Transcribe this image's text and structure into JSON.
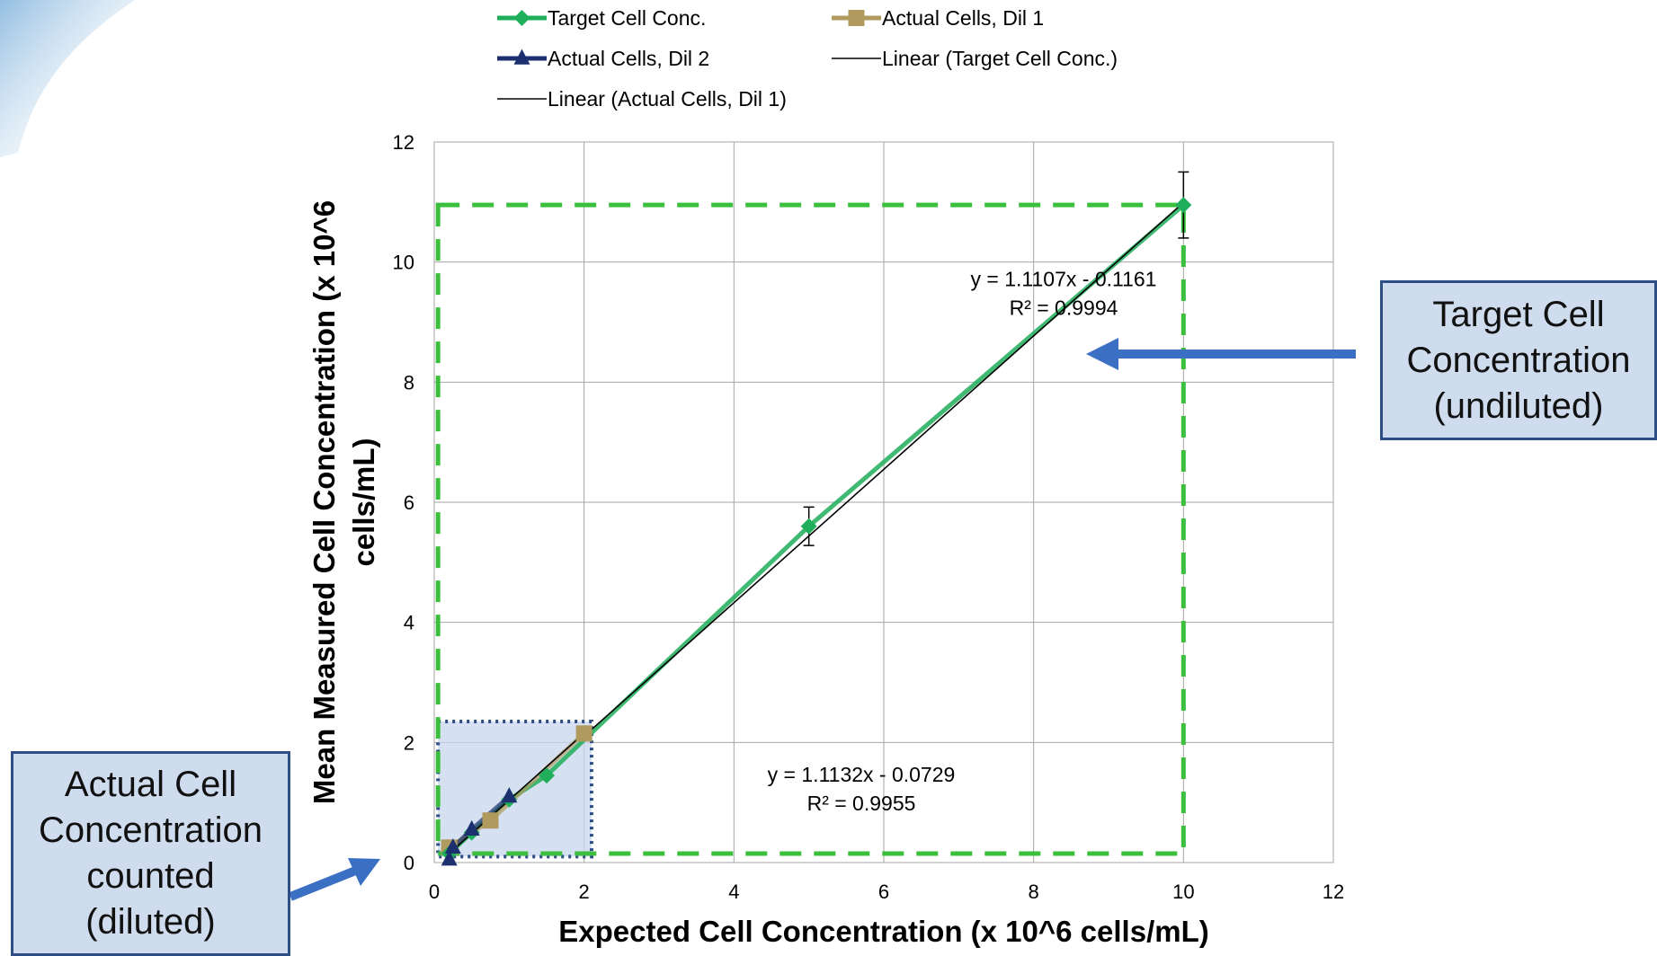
{
  "chart_data": {
    "type": "scatter",
    "title": "",
    "xlabel": "Expected Cell Concentration (x 10^6 cells/mL)",
    "ylabel_lines": [
      "Mean Measured Cell Concentration (x 10^6",
      "cells/mL)"
    ],
    "xlim": [
      0,
      12
    ],
    "ylim": [
      0,
      12
    ],
    "x_ticks": [
      0,
      2,
      4,
      6,
      8,
      10,
      12
    ],
    "y_ticks": [
      0,
      2,
      4,
      6,
      8,
      10,
      12
    ],
    "grid": true,
    "legend_position": "top",
    "series": [
      {
        "name": "Target Cell Conc.",
        "marker": "diamond",
        "color": "#1fae5a",
        "x": [
          0.2,
          0.5,
          1.0,
          1.5,
          5,
          10
        ],
        "y": [
          0.15,
          0.5,
          1.05,
          1.45,
          5.6,
          10.95
        ],
        "error_y": [
          null,
          null,
          null,
          null,
          0.32,
          0.55
        ]
      },
      {
        "name": "Actual Cells, Dil 1",
        "marker": "square",
        "color": "#b09a5e",
        "x": [
          0.2,
          0.75,
          2.0
        ],
        "y": [
          0.25,
          0.7,
          2.15
        ]
      },
      {
        "name": "Actual Cells, Dil 2",
        "marker": "triangle",
        "color": "#1c2f6e",
        "x": [
          0.2,
          0.25,
          0.5,
          1.0
        ],
        "y": [
          0.05,
          0.25,
          0.55,
          1.1
        ]
      }
    ],
    "trendlines": [
      {
        "name": "Linear (Target Cell Conc.)",
        "slope": 1.1107,
        "intercept": -0.1161,
        "x_range": [
          2.0,
          10.0
        ],
        "color": "#000000"
      },
      {
        "name": "Linear (Actual Cells, Dil 1)",
        "slope": 1.1132,
        "intercept": -0.0729,
        "x_range": [
          0.2,
          2.0
        ],
        "color": "#000000"
      }
    ],
    "annotations": [
      {
        "id": "eq1",
        "lines": [
          "y = 1.1107x - 0.1161",
          "R² = 0.9994"
        ],
        "at": [
          8.4,
          9.6
        ]
      },
      {
        "id": "eq2",
        "lines": [
          "y = 1.1132x - 0.0729",
          "R² = 0.9955"
        ],
        "at": [
          5.7,
          1.35
        ]
      }
    ],
    "highlight_boxes": [
      {
        "id": "target-box",
        "x": [
          0.05,
          10.0
        ],
        "y": [
          0.15,
          10.95
        ],
        "color": "#3cbf3c",
        "style": "dashed"
      },
      {
        "id": "actual-box",
        "x": [
          0.05,
          2.1
        ],
        "y": [
          0.1,
          2.35
        ],
        "color": "#2e4f86",
        "style": "dotted",
        "fill": "#c7d6ec"
      }
    ],
    "legend": [
      "Target Cell Conc.",
      "Actual Cells, Dil 1",
      "Actual Cells, Dil 2",
      "Linear (Target Cell Conc.)",
      "Linear (Actual Cells, Dil 1)"
    ]
  },
  "callouts": {
    "target": [
      "Target Cell",
      "Concentration",
      "(undiluted)"
    ],
    "actual": [
      "Actual Cell",
      "Concentration",
      "counted",
      "(diluted)"
    ]
  },
  "colors": {
    "callout_fill": "#cfdcee",
    "callout_border": "#2e4f86",
    "arrow": "#3a6fc4",
    "grid": "#a6a6a6"
  }
}
